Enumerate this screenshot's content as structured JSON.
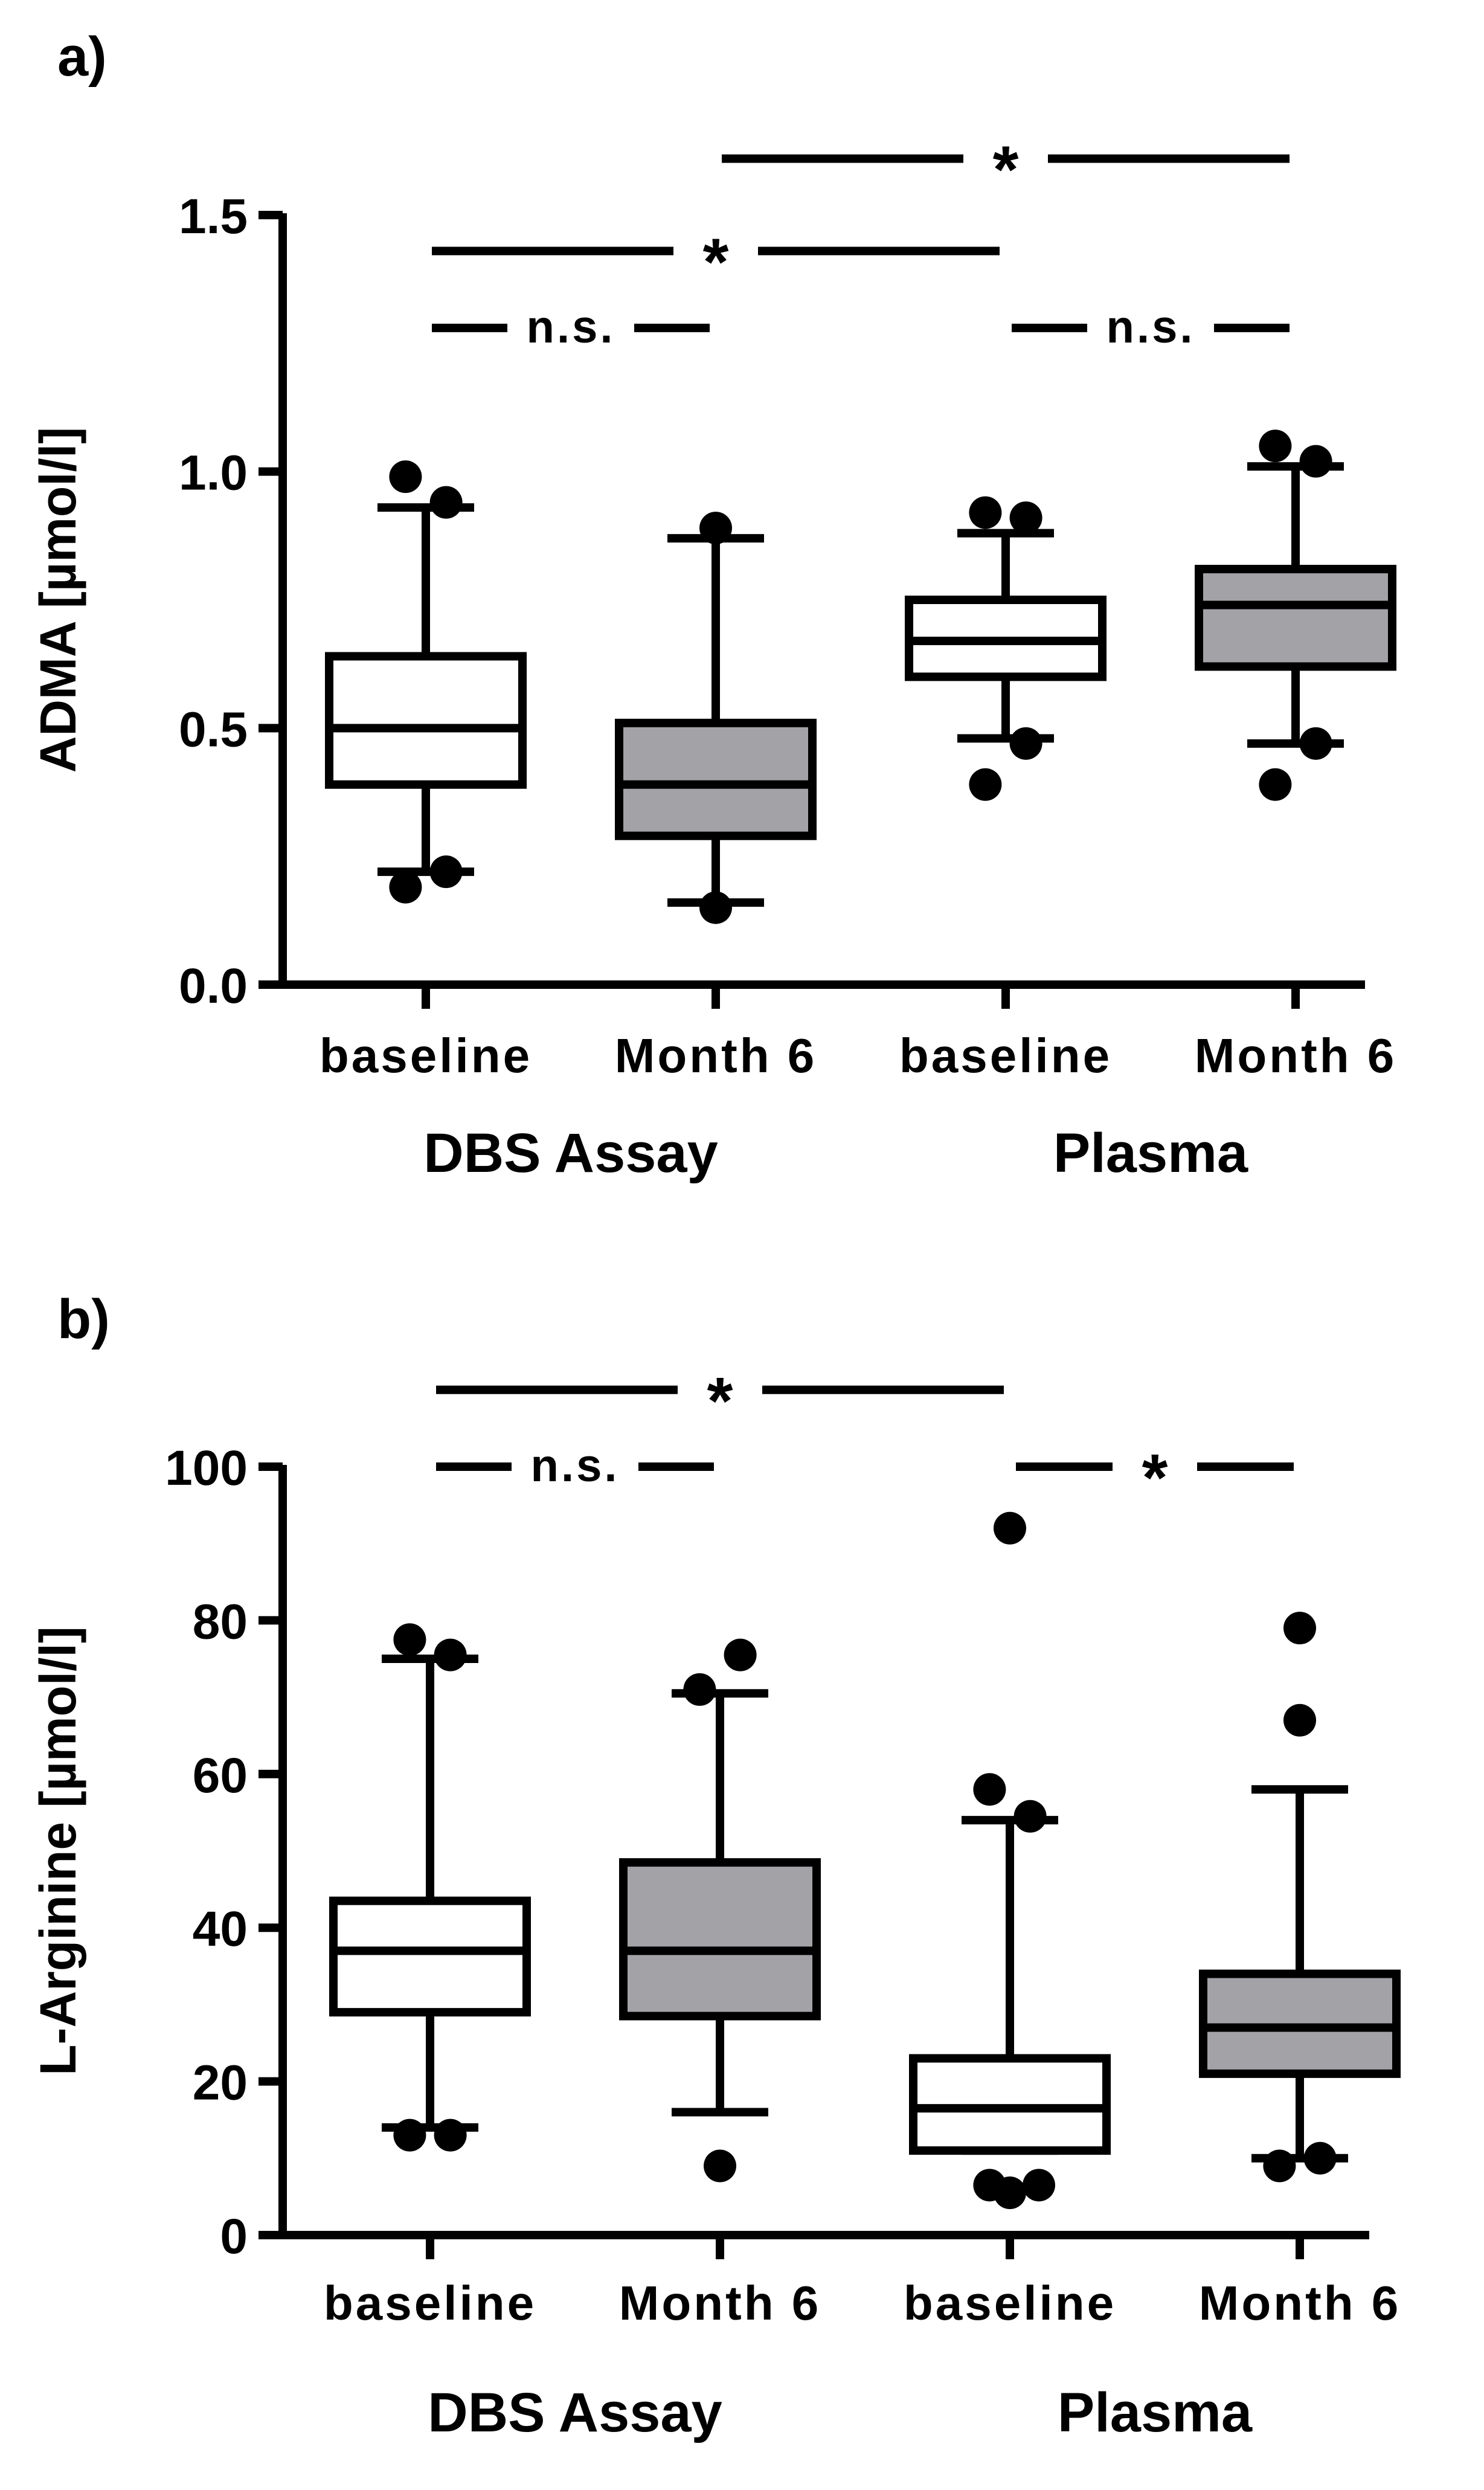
{
  "chart_data": [
    {
      "panel_label": "a)",
      "type": "box",
      "ylabel": "ADMA [µmol/l]",
      "ylim": [
        0,
        1.5
      ],
      "yticks": [
        0.0,
        0.5,
        1.0,
        1.5
      ],
      "ytick_labels": [
        "0.0",
        "0.5",
        "1.0",
        "1.5"
      ],
      "categories": [
        "baseline",
        "Month 6",
        "baseline",
        "Month 6"
      ],
      "groups": [
        {
          "label": "DBS Assay",
          "span": [
            0,
            1
          ]
        },
        {
          "label": "Plasma",
          "span": [
            2,
            3
          ]
        }
      ],
      "boxes": [
        {
          "whisker_low": 0.22,
          "q1": 0.39,
          "median": 0.5,
          "q3": 0.64,
          "whisker_high": 0.93,
          "fill": "#ffffff",
          "outliers": [
            [
              -0.07,
              0.99
            ],
            [
              0.07,
              0.94
            ],
            [
              -0.07,
              0.19
            ],
            [
              0.07,
              0.22
            ]
          ]
        },
        {
          "whisker_low": 0.16,
          "q1": 0.29,
          "median": 0.39,
          "q3": 0.51,
          "whisker_high": 0.87,
          "fill": "#a3a2a7",
          "outliers": [
            [
              0.0,
              0.89
            ],
            [
              0.0,
              0.15
            ]
          ]
        },
        {
          "whisker_low": 0.48,
          "q1": 0.6,
          "median": 0.67,
          "q3": 0.75,
          "whisker_high": 0.88,
          "fill": "#ffffff",
          "outliers": [
            [
              -0.07,
              0.92
            ],
            [
              0.07,
              0.91
            ],
            [
              0.07,
              0.47
            ],
            [
              -0.07,
              0.39
            ]
          ]
        },
        {
          "whisker_low": 0.47,
          "q1": 0.62,
          "median": 0.74,
          "q3": 0.81,
          "whisker_high": 1.01,
          "fill": "#a3a2a7",
          "outliers": [
            [
              -0.07,
              1.05
            ],
            [
              0.07,
              1.02
            ],
            [
              0.07,
              0.47
            ],
            [
              -0.07,
              0.39
            ]
          ]
        }
      ],
      "significance": [
        {
          "from": 1,
          "to": 3,
          "y": 1.61,
          "label": "*"
        },
        {
          "from": 0,
          "to": 2,
          "y": 1.43,
          "label": "*"
        },
        {
          "from": 0,
          "to": 1,
          "y": 1.28,
          "label": "n.s."
        },
        {
          "from": 2,
          "to": 3,
          "y": 1.28,
          "label": "n.s."
        }
      ]
    },
    {
      "panel_label": "b)",
      "type": "box",
      "ylabel": "L-Arginine [µmol/l]",
      "ylim": [
        0,
        100
      ],
      "yticks": [
        0,
        20,
        40,
        60,
        80,
        100
      ],
      "ytick_labels": [
        "0",
        "20",
        "40",
        "60",
        "80",
        "100"
      ],
      "categories": [
        "baseline",
        "Month 6",
        "baseline",
        "Month 6"
      ],
      "groups": [
        {
          "label": "DBS Assay",
          "span": [
            0,
            1
          ]
        },
        {
          "label": "Plasma",
          "span": [
            2,
            3
          ]
        }
      ],
      "boxes": [
        {
          "whisker_low": 14,
          "q1": 29,
          "median": 37,
          "q3": 43.5,
          "whisker_high": 75,
          "fill": "#ffffff",
          "outliers": [
            [
              -0.07,
              77.5
            ],
            [
              0.07,
              75.5
            ],
            [
              -0.07,
              13
            ],
            [
              0.07,
              13
            ]
          ]
        },
        {
          "whisker_low": 16,
          "q1": 28.5,
          "median": 37,
          "q3": 48.5,
          "whisker_high": 70.5,
          "fill": "#a3a2a7",
          "outliers": [
            [
              0.07,
              75.5
            ],
            [
              -0.07,
              71
            ],
            [
              0.0,
              9
            ]
          ]
        },
        {
          "whisker_low": 11,
          "q1": 11,
          "median": 16.5,
          "q3": 23,
          "whisker_high": 54,
          "fill": "#ffffff",
          "outliers": [
            [
              0.0,
              92
            ],
            [
              -0.07,
              58
            ],
            [
              0.07,
              54.5
            ],
            [
              -0.07,
              6.5
            ],
            [
              0.0,
              5.5
            ],
            [
              0.1,
              6.5
            ]
          ]
        },
        {
          "whisker_low": 10,
          "q1": 21,
          "median": 27,
          "q3": 34,
          "whisker_high": 58,
          "fill": "#a3a2a7",
          "outliers": [
            [
              0.0,
              79
            ],
            [
              0.0,
              67
            ],
            [
              -0.07,
              9
            ],
            [
              0.07,
              10
            ]
          ]
        }
      ],
      "significance": [
        {
          "from": 0,
          "to": 2,
          "y": 110,
          "label": "*"
        },
        {
          "from": 0,
          "to": 1,
          "y": 100,
          "label": "n.s."
        },
        {
          "from": 2,
          "to": 3,
          "y": 100,
          "label": "*"
        }
      ]
    }
  ]
}
